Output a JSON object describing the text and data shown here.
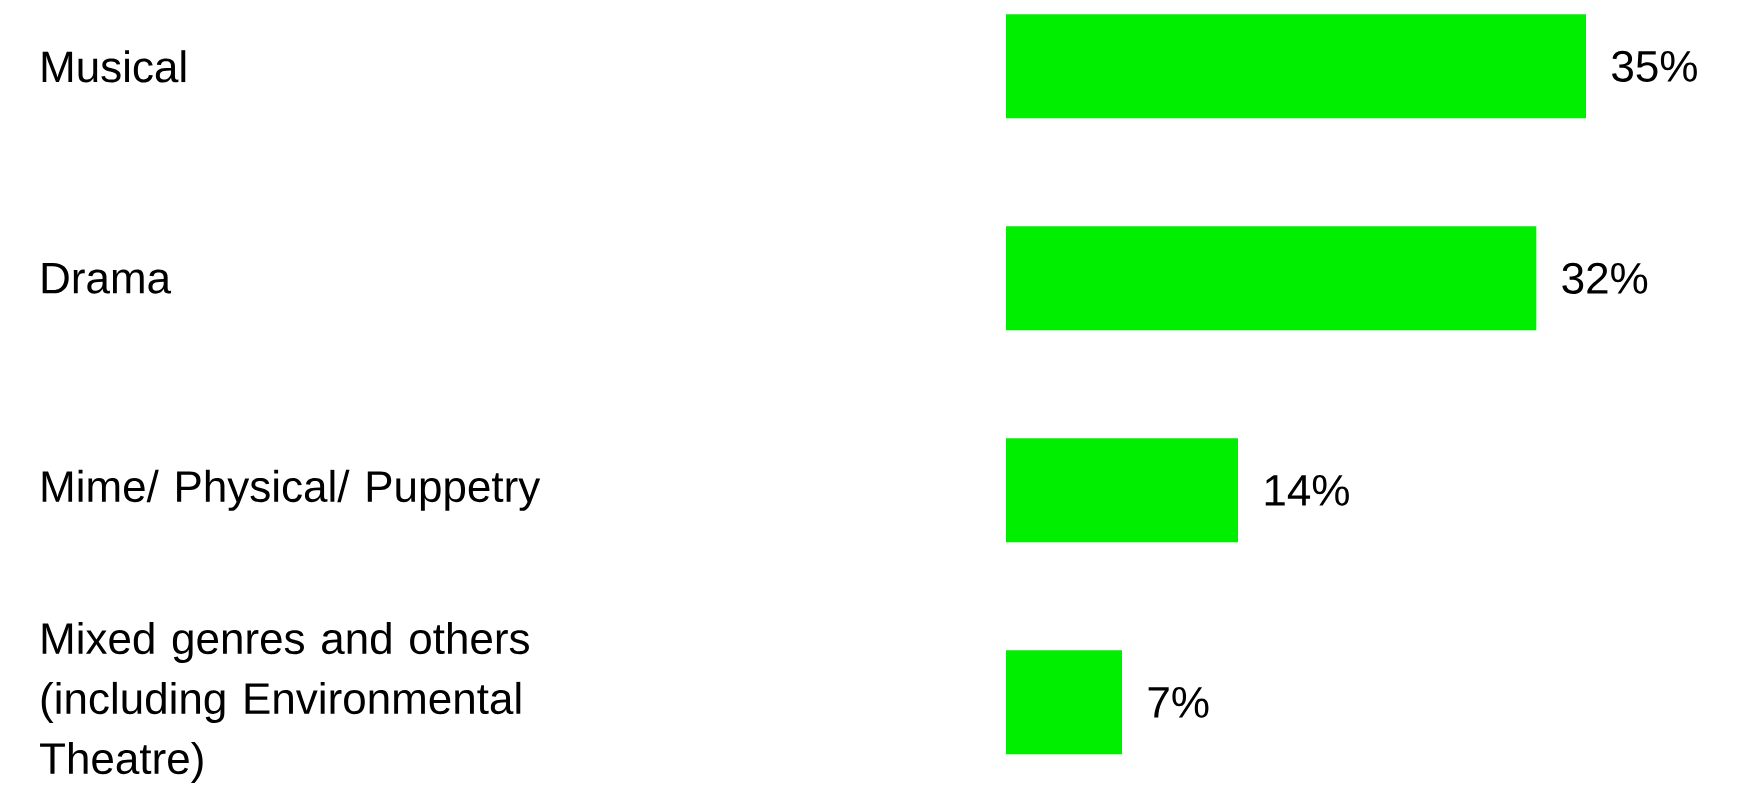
{
  "chart_data": {
    "type": "bar",
    "orientation": "horizontal",
    "categories": [
      "Musical",
      "Drama",
      "Mime/ Physical/ Puppetry",
      "Mixed genres and others (including Environmental Theatre)"
    ],
    "values": [
      35,
      32,
      14,
      7
    ],
    "value_labels": [
      "35%",
      "32%",
      "14%",
      "7%"
    ],
    "color": "#00ee00"
  }
}
